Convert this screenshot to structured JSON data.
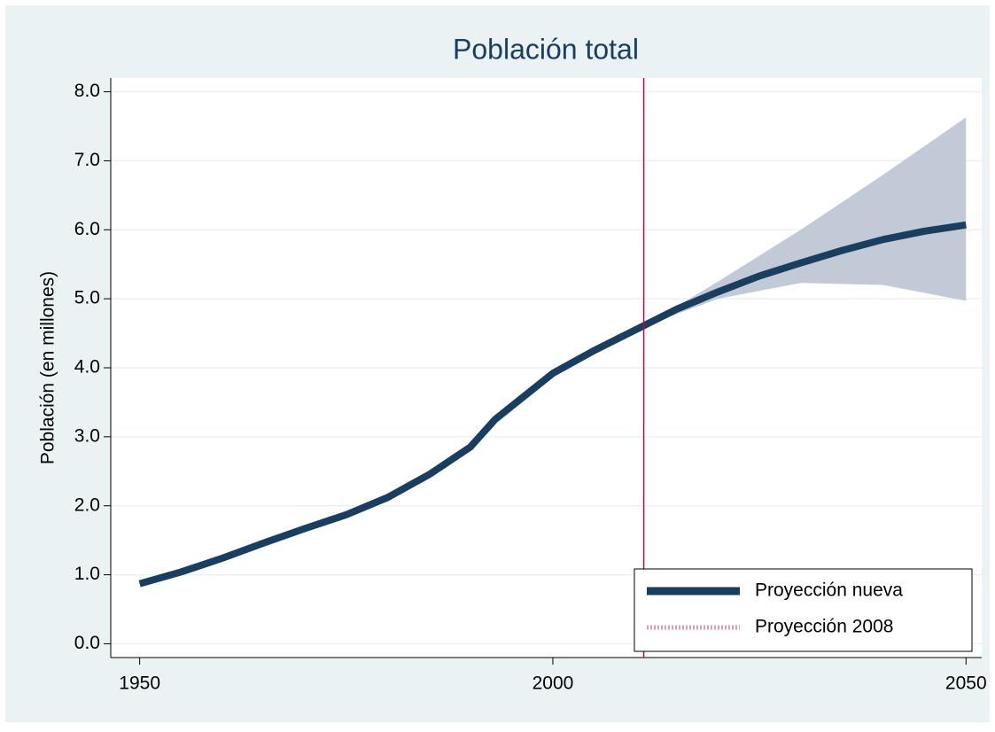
{
  "chart_data": {
    "type": "line",
    "title": "Población total",
    "ylabel": "Población (en millones)",
    "x": [
      1950,
      1955,
      1960,
      1965,
      1970,
      1975,
      1980,
      1985,
      1990,
      1993,
      2000,
      2005,
      2010,
      2015,
      2020,
      2025,
      2030,
      2035,
      2040,
      2045,
      2050
    ],
    "series": [
      {
        "name": "Proyección nueva",
        "color": "#1a3e60",
        "values": [
          0.87,
          1.04,
          1.24,
          1.46,
          1.67,
          1.87,
          2.12,
          2.45,
          2.85,
          3.25,
          3.92,
          4.25,
          4.55,
          4.85,
          5.1,
          5.33,
          5.52,
          5.7,
          5.86,
          5.98,
          6.07
        ]
      }
    ],
    "band": {
      "color": "#c1cad6",
      "x": [
        2011,
        2020,
        2030,
        2040,
        2050
      ],
      "upper": [
        4.6,
        5.25,
        6.0,
        6.8,
        7.63
      ],
      "lower": [
        4.6,
        5.0,
        5.23,
        5.2,
        4.97
      ]
    },
    "reference_line": {
      "name": "Proyección 2008",
      "x": 2011,
      "color": "#9a1c44",
      "legend_color": "#d9a0b0"
    },
    "xlim": [
      1946.5,
      2051.9
    ],
    "ylim": [
      -0.2,
      8.2
    ],
    "xticks": [
      1950,
      2000,
      2050
    ],
    "yticks": [
      {
        "value": 0,
        "label": "0.0"
      },
      {
        "value": 1,
        "label": "1.0"
      },
      {
        "value": 2,
        "label": "2.0"
      },
      {
        "value": 3,
        "label": "3.0"
      },
      {
        "value": 4,
        "label": "4.0"
      },
      {
        "value": 5,
        "label": "5.0"
      },
      {
        "value": 6,
        "label": "6.0"
      },
      {
        "value": 7,
        "label": "7.0"
      },
      {
        "value": 8,
        "label": "8.0"
      }
    ],
    "grid": true,
    "legend_position": "lower-right"
  }
}
